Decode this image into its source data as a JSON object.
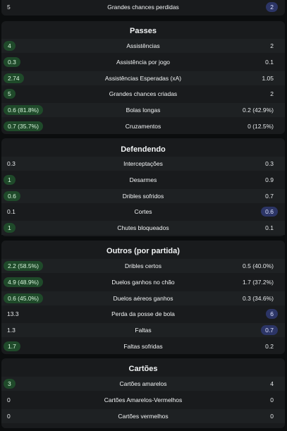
{
  "top_row": {
    "left": "5",
    "label": "Grandes chances perdidas",
    "right": "2",
    "highlight": "right"
  },
  "sections": [
    {
      "title": "Passes",
      "rows": [
        {
          "left": "4",
          "label": "Assistências",
          "right": "2",
          "highlight": "left"
        },
        {
          "left": "0.3",
          "label": "Assistência por jogo",
          "right": "0.1",
          "highlight": "left"
        },
        {
          "left": "2.74",
          "label": "Assistências Esperadas (xA)",
          "right": "1.05",
          "highlight": "left"
        },
        {
          "left": "5",
          "label": "Grandes chances criadas",
          "right": "2",
          "highlight": "left"
        },
        {
          "left": "0.6 (81.8%)",
          "label": "Bolas longas",
          "right": "0.2 (42.9%)",
          "highlight": "left"
        },
        {
          "left": "0.7 (35.7%)",
          "label": "Cruzamentos",
          "right": "0 (12.5%)",
          "highlight": "left"
        }
      ]
    },
    {
      "title": "Defendendo",
      "rows": [
        {
          "left": "0.3",
          "label": "Interceptações",
          "right": "0.3",
          "highlight": "none"
        },
        {
          "left": "1",
          "label": "Desarmes",
          "right": "0.9",
          "highlight": "left"
        },
        {
          "left": "0.6",
          "label": "Dribles sofridos",
          "right": "0.7",
          "highlight": "left"
        },
        {
          "left": "0.1",
          "label": "Cortes",
          "right": "0.6",
          "highlight": "right"
        },
        {
          "left": "1",
          "label": "Chutes bloqueados",
          "right": "0.1",
          "highlight": "left"
        }
      ]
    },
    {
      "title": "Outros (por partida)",
      "rows": [
        {
          "left": "2.2 (58.5%)",
          "label": "Dribles certos",
          "right": "0.5 (40.0%)",
          "highlight": "left"
        },
        {
          "left": "4.9 (48.9%)",
          "label": "Duelos ganhos no chão",
          "right": "1.7 (37.2%)",
          "highlight": "left"
        },
        {
          "left": "0.6 (45.0%)",
          "label": "Duelos aéreos ganhos",
          "right": "0.3 (34.6%)",
          "highlight": "left"
        },
        {
          "left": "13.3",
          "label": "Perda da posse de bola",
          "right": "6",
          "highlight": "right"
        },
        {
          "left": "1.3",
          "label": "Faltas",
          "right": "0.7",
          "highlight": "right"
        },
        {
          "left": "1.7",
          "label": "Faltas sofridas",
          "right": "0.2",
          "highlight": "left"
        }
      ]
    },
    {
      "title": "Cartões",
      "rows": [
        {
          "left": "3",
          "label": "Cartões amarelos",
          "right": "4",
          "highlight": "left"
        },
        {
          "left": "0",
          "label": "Cartões Amarelos-Vermelhos",
          "right": "0",
          "highlight": "none"
        },
        {
          "left": "0",
          "label": "Cartões vermelhos",
          "right": "0",
          "highlight": "none"
        }
      ]
    }
  ],
  "colors": {
    "left_highlight": "#1f4a2a",
    "right_highlight": "#2c3566",
    "card_bg": "#191b1d",
    "page_bg": "#0b0d0e"
  }
}
